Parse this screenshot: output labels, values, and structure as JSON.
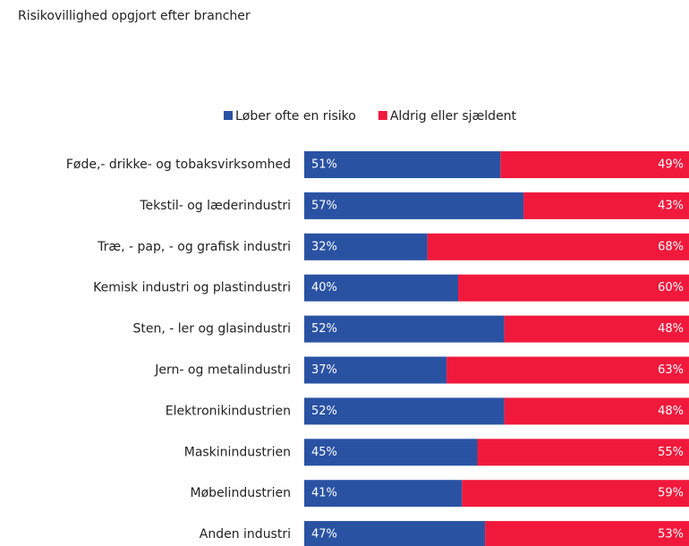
{
  "chart_data": {
    "type": "stacked-bar-horizontal",
    "title": "Risikovillighed opgjort efter brancher",
    "categories": [
      "Føde,- drikke- og tobaksvirksomhed",
      "Tekstil- og læderindustri",
      "Træ, - pap, - og grafisk industri",
      "Kemisk industri og plastindustri",
      "Sten, - ler og glasindustri",
      "Jern- og metalindustri",
      "Elektronikindustrien",
      "Maskinindustrien",
      "Møbelindustrien",
      "Anden industri"
    ],
    "series": [
      {
        "name": "Løber ofte en risiko",
        "color": "#2a52a3",
        "values": [
          51,
          57,
          32,
          40,
          52,
          37,
          52,
          45,
          41,
          47
        ],
        "value_labels": [
          "51%",
          "57%",
          "32%",
          "40%",
          "52%",
          "37%",
          "52%",
          "45%",
          "41%",
          "47%"
        ]
      },
      {
        "name": "Aldrig eller sjældent",
        "color": "#f0193c",
        "values": [
          49,
          43,
          68,
          60,
          48,
          63,
          48,
          55,
          59,
          53
        ],
        "value_labels": [
          "49%",
          "43%",
          "68%",
          "60%",
          "48%",
          "63%",
          "48%",
          "55%",
          "59%",
          "53%"
        ]
      }
    ]
  }
}
